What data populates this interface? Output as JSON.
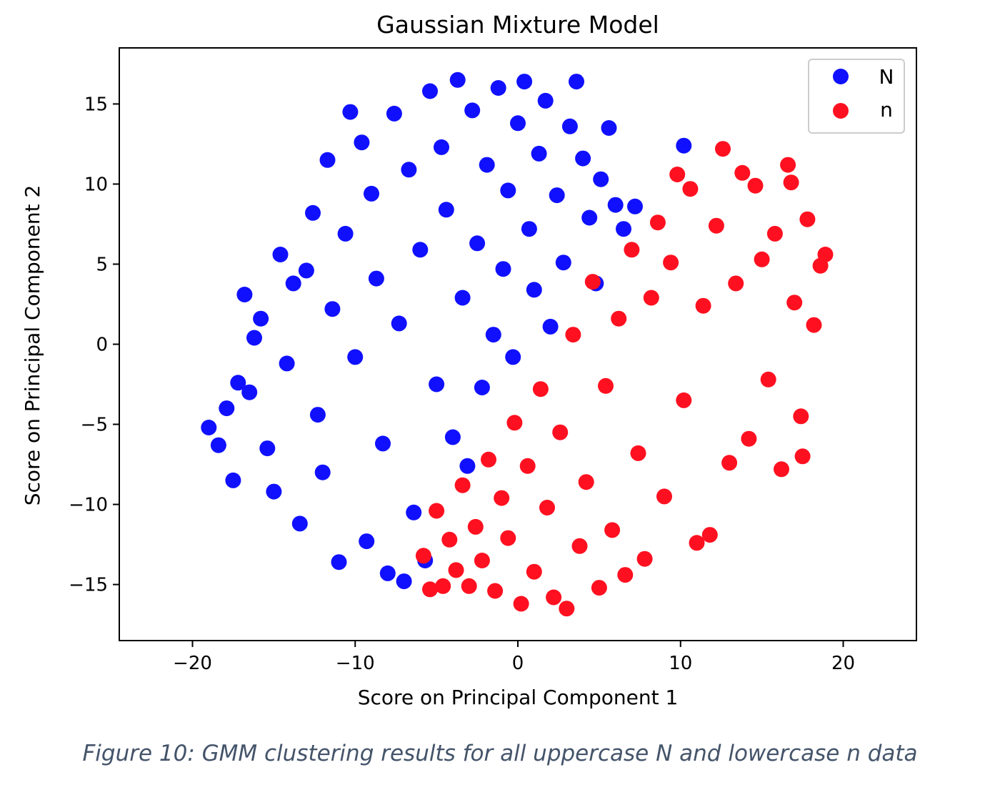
{
  "caption": "Figure 10: GMM clustering results for all uppercase N and lowercase n data",
  "chart_data": {
    "type": "scatter",
    "title": "Gaussian Mixture Model",
    "xlabel": "Score on Principal Component 1",
    "ylabel": "Score on Principal Component 2",
    "xlim": [
      -24.5,
      24.5
    ],
    "ylim": [
      -18.5,
      18.5
    ],
    "xticks": [
      -20,
      -10,
      0,
      10,
      20
    ],
    "xtick_labels": [
      "−20",
      "−10",
      "0",
      "10",
      "20"
    ],
    "yticks": [
      -15,
      -10,
      -5,
      0,
      5,
      10,
      15
    ],
    "ytick_labels": [
      "−15",
      "−10",
      "−5",
      "0",
      "5",
      "10",
      "15"
    ],
    "grid": false,
    "legend_position": "top-right",
    "series": [
      {
        "name": "N",
        "color": "#1010ff",
        "points": [
          [
            -19,
            -5.2
          ],
          [
            -18.4,
            -6.3
          ],
          [
            -17.9,
            -4
          ],
          [
            -17.5,
            -8.5
          ],
          [
            -17.2,
            -2.4
          ],
          [
            -16.8,
            3.1
          ],
          [
            -16.5,
            -3
          ],
          [
            -16.2,
            0.4
          ],
          [
            -15.8,
            1.6
          ],
          [
            -15.4,
            -6.5
          ],
          [
            -15,
            -9.2
          ],
          [
            -14.6,
            5.6
          ],
          [
            -14.2,
            -1.2
          ],
          [
            -13.8,
            3.8
          ],
          [
            -13.4,
            -11.2
          ],
          [
            -13,
            4.6
          ],
          [
            -12.6,
            8.2
          ],
          [
            -12.3,
            -4.4
          ],
          [
            -12,
            -8
          ],
          [
            -11.7,
            11.5
          ],
          [
            -11.4,
            2.2
          ],
          [
            -11,
            -13.6
          ],
          [
            -10.6,
            6.9
          ],
          [
            -10.3,
            14.5
          ],
          [
            -10,
            -0.8
          ],
          [
            -9.6,
            12.6
          ],
          [
            -9.3,
            -12.3
          ],
          [
            -9,
            9.4
          ],
          [
            -8.7,
            4.1
          ],
          [
            -8.3,
            -6.2
          ],
          [
            -8,
            -14.3
          ],
          [
            -7.6,
            14.4
          ],
          [
            -7.3,
            1.3
          ],
          [
            -7,
            -14.8
          ],
          [
            -6.7,
            10.9
          ],
          [
            -6.4,
            -10.5
          ],
          [
            -6,
            5.9
          ],
          [
            -5.7,
            -13.5
          ],
          [
            -5.4,
            15.8
          ],
          [
            -5,
            -2.5
          ],
          [
            -4.7,
            12.3
          ],
          [
            -4.4,
            8.4
          ],
          [
            -4,
            -5.8
          ],
          [
            -3.7,
            16.5
          ],
          [
            -3.4,
            2.9
          ],
          [
            -3.1,
            -7.6
          ],
          [
            -2.8,
            14.6
          ],
          [
            -2.5,
            6.3
          ],
          [
            -2.2,
            -2.7
          ],
          [
            -1.9,
            11.2
          ],
          [
            -1.5,
            0.6
          ],
          [
            -1.2,
            16
          ],
          [
            -0.9,
            4.7
          ],
          [
            -0.6,
            9.6
          ],
          [
            -0.3,
            -0.8
          ],
          [
            0,
            13.8
          ],
          [
            0.4,
            16.4
          ],
          [
            0.7,
            7.2
          ],
          [
            1,
            3.4
          ],
          [
            1.3,
            11.9
          ],
          [
            1.7,
            15.2
          ],
          [
            2,
            1.1
          ],
          [
            2.4,
            9.3
          ],
          [
            2.8,
            5.1
          ],
          [
            3.2,
            13.6
          ],
          [
            3.6,
            16.4
          ],
          [
            4,
            11.6
          ],
          [
            4.4,
            7.9
          ],
          [
            4.8,
            3.8
          ],
          [
            5.1,
            10.3
          ],
          [
            5.6,
            13.5
          ],
          [
            6,
            8.7
          ],
          [
            6.5,
            7.2
          ],
          [
            7.2,
            8.6
          ],
          [
            10.2,
            12.4
          ]
        ]
      },
      {
        "name": "n",
        "color": "#ff1020",
        "points": [
          [
            -5.8,
            -13.2
          ],
          [
            -5.4,
            -15.3
          ],
          [
            -5,
            -10.4
          ],
          [
            -4.6,
            -15.1
          ],
          [
            -4.2,
            -12.2
          ],
          [
            -3.8,
            -14.1
          ],
          [
            -3.4,
            -8.8
          ],
          [
            -3,
            -15.1
          ],
          [
            -2.6,
            -11.4
          ],
          [
            -2.2,
            -13.5
          ],
          [
            -1.8,
            -7.2
          ],
          [
            -1.4,
            -15.4
          ],
          [
            -1,
            -9.6
          ],
          [
            -0.6,
            -12.1
          ],
          [
            -0.2,
            -4.9
          ],
          [
            0.2,
            -16.2
          ],
          [
            0.6,
            -7.6
          ],
          [
            1,
            -14.2
          ],
          [
            1.4,
            -2.8
          ],
          [
            1.8,
            -10.2
          ],
          [
            2.2,
            -15.8
          ],
          [
            2.6,
            -5.5
          ],
          [
            3,
            -16.5
          ],
          [
            3.4,
            0.6
          ],
          [
            3.8,
            -12.6
          ],
          [
            4.2,
            -8.6
          ],
          [
            4.6,
            3.9
          ],
          [
            5,
            -15.2
          ],
          [
            5.4,
            -2.6
          ],
          [
            5.8,
            -11.6
          ],
          [
            6.2,
            1.6
          ],
          [
            6.6,
            -14.4
          ],
          [
            7,
            5.9
          ],
          [
            7.4,
            -6.8
          ],
          [
            7.8,
            -13.4
          ],
          [
            8.2,
            2.9
          ],
          [
            8.6,
            7.6
          ],
          [
            9,
            -9.5
          ],
          [
            9.4,
            5.1
          ],
          [
            9.8,
            10.6
          ],
          [
            10.2,
            -3.5
          ],
          [
            10.6,
            9.7
          ],
          [
            11,
            -12.4
          ],
          [
            11.4,
            2.4
          ],
          [
            11.8,
            -11.9
          ],
          [
            12.2,
            7.4
          ],
          [
            12.6,
            12.2
          ],
          [
            13,
            -7.4
          ],
          [
            13.4,
            3.8
          ],
          [
            13.8,
            10.7
          ],
          [
            14.2,
            -5.9
          ],
          [
            14.6,
            9.9
          ],
          [
            15,
            5.3
          ],
          [
            15.4,
            -2.2
          ],
          [
            15.8,
            6.9
          ],
          [
            16.2,
            -7.8
          ],
          [
            16.6,
            11.2
          ],
          [
            17,
            2.6
          ],
          [
            17.4,
            -4.5
          ],
          [
            17.8,
            7.8
          ],
          [
            18.2,
            1.2
          ],
          [
            18.6,
            4.9
          ],
          [
            18.9,
            5.6
          ],
          [
            17.5,
            -7
          ],
          [
            16.8,
            10.1
          ]
        ]
      }
    ]
  }
}
